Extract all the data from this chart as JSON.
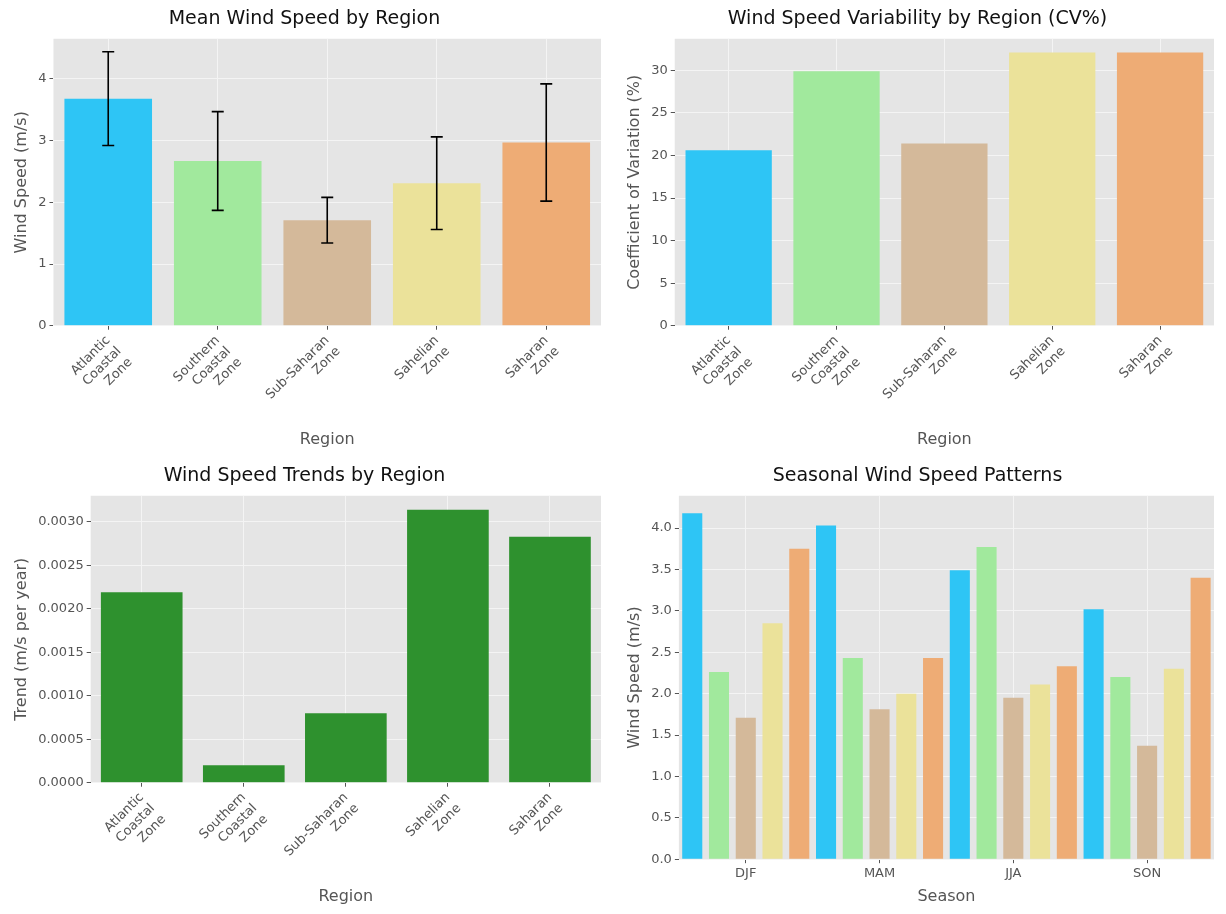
{
  "chart_data": [
    {
      "type": "bar",
      "title": "Mean Wind Speed by Region",
      "xlabel": "Region",
      "ylabel": "Wind Speed (m/s)",
      "categories": [
        "Atlantic Coastal Zone",
        "Southern Coastal Zone",
        "Sub-Saharan Zone",
        "Sahelian Zone",
        "Saharan Zone"
      ],
      "values": [
        3.68,
        2.67,
        1.71,
        2.31,
        2.97
      ],
      "errors": [
        0.76,
        0.8,
        0.37,
        0.75,
        0.95
      ],
      "colors": [
        "#2ec5f5",
        "#a1e99d",
        "#d4b99a",
        "#ebe29a",
        "#eeac75"
      ],
      "ylim": [
        0,
        4.65
      ],
      "yticks": [
        0,
        1,
        2,
        3,
        4
      ],
      "grid": true,
      "legend": false
    },
    {
      "type": "bar",
      "title": "Wind Speed Variability by Region (CV%)",
      "xlabel": "Region",
      "ylabel": "Coefficient of Variation (%)",
      "categories": [
        "Atlantic Coastal Zone",
        "Southern Coastal Zone",
        "Sub-Saharan Zone",
        "Sahelian Zone",
        "Saharan Zone"
      ],
      "values": [
        20.6,
        29.9,
        21.4,
        32.1,
        32.1
      ],
      "colors": [
        "#2ec5f5",
        "#a1e99d",
        "#d4b99a",
        "#ebe29a",
        "#eeac75"
      ],
      "ylim": [
        0,
        33.7
      ],
      "yticks": [
        0,
        5,
        10,
        15,
        20,
        25,
        30
      ],
      "grid": true,
      "legend": false
    },
    {
      "type": "bar",
      "title": "Wind Speed Trends by Region",
      "xlabel": "Region",
      "ylabel": "Trend (m/s per year)",
      "categories": [
        "Atlantic Coastal Zone",
        "Southern Coastal Zone",
        "Sub-Saharan Zone",
        "Sahelian Zone",
        "Saharan Zone"
      ],
      "values": [
        0.00219,
        0.0002,
        0.0008,
        0.00314,
        0.00283
      ],
      "color": "#2e912e",
      "ylim": [
        0,
        0.0033
      ],
      "yticks": [
        {
          "value": 0,
          "label": "0.0000"
        },
        {
          "value": 0.0005,
          "label": "0.0005"
        },
        {
          "value": 0.001,
          "label": "0.0010"
        },
        {
          "value": 0.0015,
          "label": "0.0015"
        },
        {
          "value": 0.002,
          "label": "0.0020"
        },
        {
          "value": 0.0025,
          "label": "0.0025"
        },
        {
          "value": 0.003,
          "label": "0.0030"
        }
      ],
      "grid": true,
      "legend": false
    },
    {
      "type": "bar",
      "title": "Seasonal Wind Speed Patterns",
      "xlabel": "Season",
      "ylabel": "Wind Speed (m/s)",
      "categories": [
        "DJF",
        "MAM",
        "JJA",
        "SON"
      ],
      "series": [
        {
          "color": "#2ec5f5",
          "values": [
            4.18,
            4.03,
            3.49,
            3.02
          ]
        },
        {
          "color": "#a1e99d",
          "values": [
            2.26,
            2.43,
            3.77,
            2.2
          ]
        },
        {
          "color": "#d4b99a",
          "values": [
            1.71,
            1.81,
            1.95,
            1.37
          ]
        },
        {
          "color": "#ebe29a",
          "values": [
            2.85,
            2.0,
            2.11,
            2.3
          ]
        },
        {
          "color": "#eeac75",
          "values": [
            3.75,
            2.43,
            2.33,
            3.4
          ]
        }
      ],
      "ylim": [
        0,
        4.39
      ],
      "yticks": [
        {
          "value": 0,
          "label": "0.0"
        },
        {
          "value": 0.5,
          "label": "0.5"
        },
        {
          "value": 1,
          "label": "1.0"
        },
        {
          "value": 1.5,
          "label": "1.5"
        },
        {
          "value": 2,
          "label": "2.0"
        },
        {
          "value": 2.5,
          "label": "2.5"
        },
        {
          "value": 3,
          "label": "3.0"
        },
        {
          "value": 3.5,
          "label": "3.5"
        },
        {
          "value": 4,
          "label": "4.0"
        }
      ],
      "grid": true,
      "legend": false
    }
  ]
}
